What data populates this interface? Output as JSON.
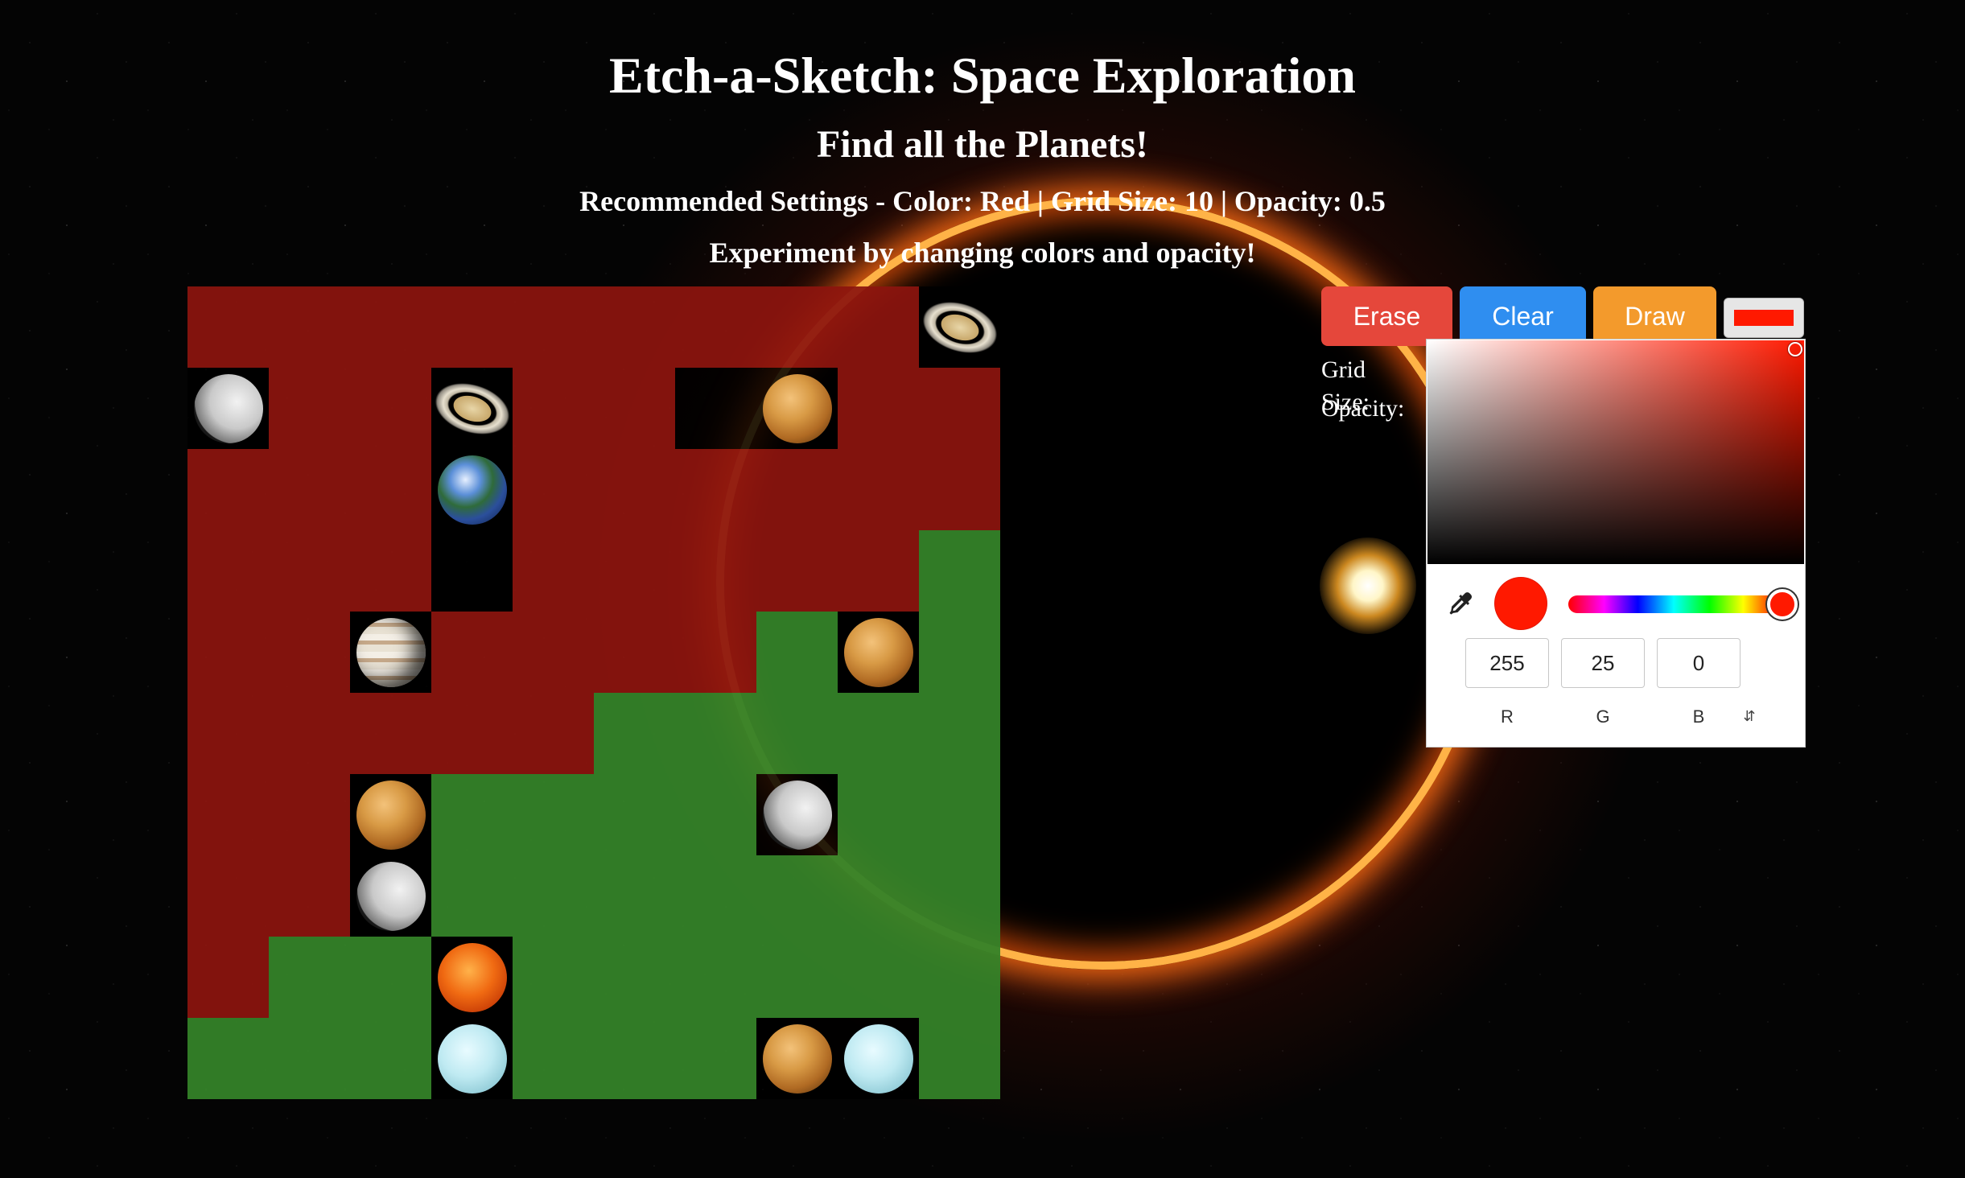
{
  "header": {
    "title": "Etch-a-Sketch: Space Exploration",
    "subtitle": "Find all the Planets!",
    "recommended": "Recommended Settings - Color: Red | Grid Size: 10 | Opacity: 0.5",
    "experiment": "Experiment by changing colors and opacity!"
  },
  "controls": {
    "erase_label": "Erase",
    "clear_label": "Clear",
    "draw_label": "Draw",
    "grid_size_label": "Grid Size:",
    "opacity_label": "Opacity:",
    "current_color": "#ff1900"
  },
  "color_picker": {
    "r": "255",
    "g": "25",
    "b": "0",
    "r_label": "R",
    "g_label": "G",
    "b_label": "B",
    "mode_toggle_icon": "chevron-up-down-icon",
    "eyedropper_icon": "eyedropper-icon",
    "hue": "#ff1900"
  },
  "colors": {
    "red_cell": "#8c140e",
    "green_cell": "#348228",
    "erase": "#e5473b",
    "clear": "#2f8ef0",
    "draw": "#f39a2c"
  },
  "grid": {
    "size": 10,
    "rows": [
      [
        "red",
        "red",
        "red",
        "red",
        "red",
        "red",
        "red",
        "red",
        "red",
        "clear"
      ],
      [
        "clear",
        "red",
        "red",
        "clear",
        "red",
        "red",
        "clear",
        "clear",
        "red",
        "red"
      ],
      [
        "red",
        "red",
        "red",
        "clear",
        "red",
        "red",
        "red",
        "red",
        "red",
        "red"
      ],
      [
        "red",
        "red",
        "red",
        "clear",
        "red",
        "red",
        "red",
        "red",
        "red",
        "green"
      ],
      [
        "red",
        "red",
        "clear",
        "red",
        "red",
        "red",
        "red",
        "green",
        "clear",
        "green"
      ],
      [
        "red",
        "red",
        "red",
        "red",
        "red",
        "green",
        "green",
        "green",
        "green",
        "green"
      ],
      [
        "red",
        "red",
        "clear",
        "green",
        "green",
        "green",
        "green",
        "clear",
        "green",
        "green"
      ],
      [
        "red",
        "red",
        "clear",
        "green",
        "green",
        "green",
        "green",
        "green",
        "green",
        "green"
      ],
      [
        "red",
        "green",
        "green",
        "clear",
        "green",
        "green",
        "green",
        "green",
        "green",
        "green"
      ],
      [
        "green",
        "green",
        "green",
        "clear",
        "green",
        "green",
        "green",
        "clear",
        "clear",
        "green"
      ]
    ],
    "planets": [
      [
        "",
        "",
        "",
        "",
        "",
        "",
        "",
        "",
        "",
        "saturn-icon"
      ],
      [
        "moon-icon",
        "",
        "",
        "saturn-icon",
        "",
        "",
        "",
        "venus-icon",
        "",
        ""
      ],
      [
        "",
        "",
        "",
        "earth-icon",
        "",
        "",
        "",
        "",
        "",
        ""
      ],
      [
        "",
        "",
        "",
        "",
        "",
        "",
        "",
        "",
        "",
        ""
      ],
      [
        "",
        "",
        "jupiter-icon",
        "",
        "",
        "",
        "",
        "",
        "venus-icon",
        ""
      ],
      [
        "",
        "",
        "",
        "",
        "",
        "",
        "",
        "",
        "",
        ""
      ],
      [
        "",
        "",
        "venus-icon",
        "",
        "",
        "",
        "",
        "moon-icon",
        "",
        ""
      ],
      [
        "",
        "",
        "moon-icon",
        "",
        "",
        "",
        "",
        "",
        "",
        ""
      ],
      [
        "",
        "",
        "",
        "sun-icon",
        "",
        "",
        "",
        "",
        "",
        ""
      ],
      [
        "",
        "",
        "",
        "uranus-icon",
        "",
        "",
        "",
        "venus-icon",
        "uranus-icon",
        ""
      ]
    ]
  }
}
